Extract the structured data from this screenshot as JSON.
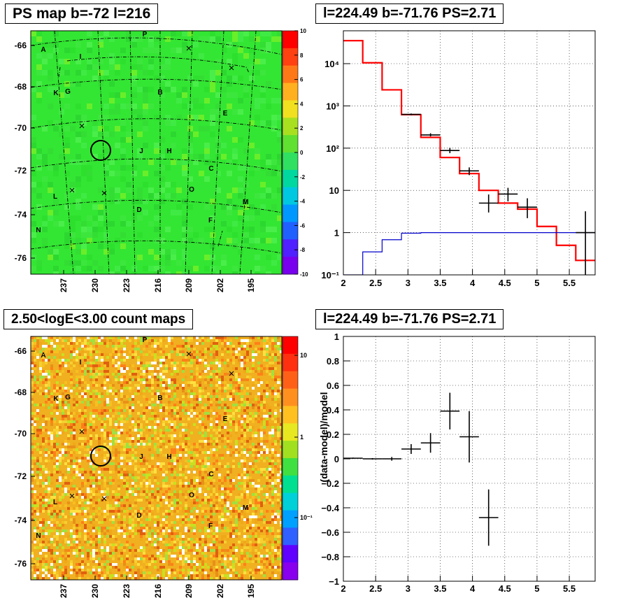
{
  "panels": {
    "ps_map": {
      "title": "PS map b=-72 l=216",
      "y_ticks": [
        "-66",
        "-68",
        "-70",
        "-72",
        "-74",
        "-76"
      ],
      "x_ticks": [
        "237",
        "230",
        "223",
        "216",
        "209",
        "202",
        "195"
      ],
      "colorbar_ticks": [
        "10",
        "8",
        "6",
        "4",
        "2",
        "0",
        "-2",
        "-4",
        "-6",
        "-8",
        "-10"
      ],
      "base_color": "#33e633"
    },
    "count_map": {
      "title": "2.50<logE<3.00 count maps",
      "y_ticks": [
        "-66",
        "-68",
        "-70",
        "-72",
        "-74",
        "-76"
      ],
      "x_ticks": [
        "237",
        "230",
        "223",
        "216",
        "209",
        "202",
        "195"
      ],
      "colorbar_ticks": [
        "10",
        "1",
        "10⁻¹"
      ],
      "base_color": "#f0b020"
    },
    "spectrum": {
      "title": "l=224.49 b=-71.76 PS=2.71"
    },
    "residual": {
      "title": "l=224.49 b=-71.76 PS=2.71"
    }
  },
  "region_labels": [
    {
      "id": "P",
      "text": "P"
    },
    {
      "id": "A",
      "text": "A"
    },
    {
      "id": "I",
      "text": "I"
    },
    {
      "id": "K",
      "text": "K"
    },
    {
      "id": "G",
      "text": "G"
    },
    {
      "id": "B",
      "text": "B"
    },
    {
      "id": "E",
      "text": "E"
    },
    {
      "id": "J",
      "text": "J"
    },
    {
      "id": "H",
      "text": "H"
    },
    {
      "id": "C",
      "text": "C"
    },
    {
      "id": "L",
      "text": "L"
    },
    {
      "id": "O",
      "text": "O"
    },
    {
      "id": "M",
      "text": "M"
    },
    {
      "id": "D",
      "text": "D"
    },
    {
      "id": "F",
      "text": "F"
    },
    {
      "id": "N",
      "text": "N"
    }
  ],
  "chart_data": [
    {
      "type": "heatmap",
      "title": "PS map b=-72 l=216",
      "xlabel": "",
      "ylabel": "",
      "x_ticks": [
        237,
        230,
        223,
        216,
        209,
        202,
        195
      ],
      "y_ticks": [
        -66,
        -68,
        -70,
        -72,
        -74,
        -76
      ],
      "color_range": [
        -10,
        10
      ],
      "note_source_circle": {
        "l": 224.49,
        "b": -71.76
      }
    },
    {
      "type": "heatmap",
      "title": "2.50<logE<3.00 count maps",
      "xlabel": "",
      "ylabel": "",
      "x_ticks": [
        237,
        230,
        223,
        216,
        209,
        202,
        195
      ],
      "y_ticks": [
        -66,
        -68,
        -70,
        -72,
        -74,
        -76
      ],
      "color_scale": "log",
      "color_ticks": [
        0.1,
        1,
        10
      ]
    },
    {
      "type": "line",
      "title": "l=224.49 b=-71.76 PS=2.71",
      "xlabel": "",
      "ylabel": "",
      "xlim": [
        2.0,
        5.9
      ],
      "ylim": [
        0.1,
        60000
      ],
      "y_scale": "log",
      "x_ticks": [
        2,
        2.5,
        3,
        3.5,
        4,
        4.5,
        5,
        5.5
      ],
      "y_tick_labels": [
        "10⁻¹",
        "1",
        "10",
        "10²",
        "10³",
        "10⁴"
      ],
      "y_tick_values": [
        0.1,
        1,
        10,
        100,
        1000,
        10000
      ],
      "grid": true,
      "series": [
        {
          "kind": "step",
          "color": "#ff0000",
          "edges": [
            2.0,
            2.3,
            2.6,
            2.9,
            3.2,
            3.5,
            3.8,
            4.1,
            4.4,
            4.7,
            5.0,
            5.3,
            5.6,
            5.9
          ],
          "values": [
            35000,
            10500,
            2400,
            620,
            180,
            60,
            25,
            10,
            5,
            3.6,
            1.4,
            0.5,
            0.22
          ]
        },
        {
          "kind": "step",
          "color": "#0000cc",
          "edges": [
            2.0,
            2.3,
            2.6,
            2.9,
            3.2,
            3.5,
            3.8,
            4.1,
            4.4,
            4.7,
            5.0,
            5.3,
            5.6,
            5.9
          ],
          "values": [
            0.1,
            0.35,
            0.68,
            0.97,
            1.0,
            1.0,
            1.0,
            1.0,
            1.0,
            1.0,
            1.0,
            1.0,
            1.0
          ]
        },
        {
          "kind": "errorbar",
          "color": "#000000",
          "points": [
            {
              "x": 3.05,
              "y": 630,
              "xerr": 0.15,
              "ylo": 600,
              "yhi": 660
            },
            {
              "x": 3.35,
              "y": 205,
              "xerr": 0.15,
              "ylo": 190,
              "yhi": 225
            },
            {
              "x": 3.65,
              "y": 88,
              "xerr": 0.15,
              "ylo": 76,
              "yhi": 102
            },
            {
              "x": 3.95,
              "y": 29,
              "xerr": 0.15,
              "ylo": 23,
              "yhi": 35
            },
            {
              "x": 4.25,
              "y": 5.0,
              "xerr": 0.15,
              "ylo": 3.0,
              "yhi": 8.0
            },
            {
              "x": 4.55,
              "y": 8.2,
              "xerr": 0.15,
              "ylo": 5.5,
              "yhi": 11.5
            },
            {
              "x": 4.85,
              "y": 4.0,
              "xerr": 0.15,
              "ylo": 2.2,
              "yhi": 6.5
            },
            {
              "x": 5.75,
              "y": 1.0,
              "xerr": 0.15,
              "ylo": 0.1,
              "yhi": 3.2
            }
          ]
        }
      ]
    },
    {
      "type": "scatter",
      "title": "l=224.49 b=-71.76 PS=2.71",
      "xlabel": "",
      "ylabel": "(data-model)/model",
      "xlim": [
        2.0,
        5.9
      ],
      "ylim": [
        -1.0,
        1.0
      ],
      "x_ticks": [
        2,
        2.5,
        3,
        3.5,
        4,
        4.5,
        5,
        5.5
      ],
      "y_ticks": [
        -1,
        -0.8,
        -0.6,
        -0.4,
        -0.2,
        0,
        0.2,
        0.4,
        0.6,
        0.8,
        1
      ],
      "grid": true,
      "series": [
        {
          "kind": "errorbar",
          "color": "#000000",
          "points": [
            {
              "x": 2.15,
              "y": 0.005,
              "xerr": 0.15,
              "yerr": 0.005
            },
            {
              "x": 2.45,
              "y": 0.0,
              "xerr": 0.15,
              "yerr": 0.006
            },
            {
              "x": 2.75,
              "y": 0.0,
              "xerr": 0.15,
              "yerr": 0.015
            },
            {
              "x": 3.05,
              "y": 0.08,
              "xerr": 0.15,
              "yerr": 0.04
            },
            {
              "x": 3.35,
              "y": 0.13,
              "xerr": 0.15,
              "yerr": 0.08
            },
            {
              "x": 3.65,
              "y": 0.39,
              "xerr": 0.15,
              "yerr": 0.15
            },
            {
              "x": 3.95,
              "y": 0.18,
              "xerr": 0.15,
              "yerr": 0.21
            },
            {
              "x": 4.25,
              "y": -0.48,
              "xerr": 0.15,
              "yerr": 0.23
            }
          ]
        }
      ]
    }
  ]
}
